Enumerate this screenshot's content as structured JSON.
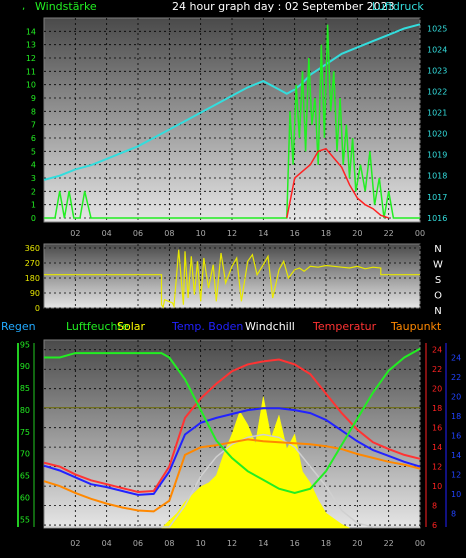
{
  "header": {
    "title": "24 hour graph day : 02 September 2023",
    "left_label": "Windstärke",
    "right_label": "Luftdruck",
    "left_marker": ","
  },
  "legend": {
    "regen": "Regen",
    "luftfeuchte": "Luftfeuchte",
    "solar": "Solar",
    "temp_boden": "Temp. Boden",
    "windchill": "Windchill",
    "temperatur": "Temperatur",
    "taupunkt": "Taupunkt"
  },
  "colors": {
    "wind": "#22ee22",
    "gust": "#ff2222",
    "pressure": "#33dddd",
    "direction": "#e8e800",
    "regen": "#22cc22",
    "luftfeuchte": "#22ee22",
    "solar": "#ffff00",
    "temp_boden": "#2222ff",
    "windchill": "#ffffff",
    "temperatur": "#ff3333",
    "taupunkt": "#ff8800",
    "background_top": "#4a4a4a",
    "background_bottom": "#e6e6e6"
  },
  "chart_data": [
    {
      "type": "line",
      "name": "wind-pressure",
      "x_ticks": [
        "02",
        "04",
        "06",
        "08",
        "10",
        "12",
        "14",
        "16",
        "18",
        "20",
        "22",
        "00"
      ],
      "y_left_ticks": [
        "0",
        "1",
        "2",
        "3",
        "4",
        "5",
        "6",
        "7",
        "8",
        "9",
        "10",
        "11",
        "12",
        "13",
        "14"
      ],
      "y_right_ticks": [
        "1016",
        "1017",
        "1018",
        "1019",
        "1020",
        "1021",
        "1022",
        "1023",
        "1024",
        "1025"
      ],
      "xlim": [
        0,
        24
      ],
      "ylim_left": [
        0,
        15
      ],
      "ylim_right": [
        1015.8,
        1025.5
      ],
      "pressure": {
        "x": [
          0,
          1,
          2,
          3,
          4,
          5,
          6,
          7,
          8,
          9,
          10,
          11,
          12,
          13,
          14,
          15,
          15.5,
          16,
          16.5,
          17,
          18,
          19,
          20,
          21,
          22,
          23,
          24
        ],
        "y": [
          1017.8,
          1018.0,
          1018.3,
          1018.5,
          1018.8,
          1019.1,
          1019.4,
          1019.8,
          1020.2,
          1020.6,
          1021.0,
          1021.4,
          1021.8,
          1022.2,
          1022.5,
          1022.1,
          1021.9,
          1022.1,
          1022.4,
          1022.8,
          1023.3,
          1023.8,
          1024.1,
          1024.4,
          1024.7,
          1025.0,
          1025.2
        ]
      },
      "wind": {
        "x": [
          0,
          0.7,
          1.0,
          1.3,
          1.6,
          1.9,
          2.3,
          2.6,
          3.0,
          3.4,
          15.5,
          15.7,
          15.9,
          16.1,
          16.3,
          16.5,
          16.7,
          16.9,
          17.1,
          17.3,
          17.5,
          17.7,
          17.9,
          18.1,
          18.3,
          18.5,
          18.7,
          18.9,
          19.1,
          19.3,
          19.5,
          19.7,
          19.9,
          20.2,
          20.5,
          20.8,
          21.1,
          21.4,
          21.7,
          22.0,
          22.3,
          22.6,
          23,
          24
        ],
        "y": [
          0,
          0,
          2,
          0,
          2,
          0,
          0,
          2,
          0,
          0,
          0,
          8,
          4,
          10,
          6,
          11,
          5,
          12,
          7,
          9,
          4,
          13,
          6,
          14.5,
          8,
          11,
          5,
          9,
          4,
          7,
          3,
          6,
          2,
          4,
          2,
          5,
          1,
          3,
          0,
          2,
          0,
          0,
          0,
          0
        ]
      },
      "gust": {
        "x": [
          15.5,
          16,
          16.5,
          17,
          17.5,
          18,
          18.5,
          19,
          19.5,
          20,
          20.5,
          21,
          21.5,
          22
        ],
        "y": [
          0,
          3,
          3.5,
          4,
          5,
          5.2,
          4.5,
          3.8,
          2.5,
          1.5,
          1,
          0.7,
          0.2,
          0
        ]
      }
    },
    {
      "type": "line",
      "name": "wind-direction",
      "x_ticks": [
        "02",
        "04",
        "06",
        "08",
        "10",
        "12",
        "14",
        "16",
        "18",
        "20",
        "22",
        "00"
      ],
      "y_left_ticks": [
        "0",
        "90",
        "180",
        "270",
        "360"
      ],
      "y_right_labels": [
        "N",
        "W",
        "S",
        "O",
        "N"
      ],
      "xlim": [
        0,
        24
      ],
      "ylim": [
        0,
        360
      ],
      "direction": {
        "x": [
          0,
          7.5,
          7.5,
          7.6,
          7.7,
          8.2,
          8.3,
          8.6,
          8.9,
          9.0,
          9.2,
          9.4,
          9.6,
          9.8,
          10.0,
          10.2,
          10.5,
          10.8,
          11.0,
          11.3,
          11.6,
          12.0,
          12.3,
          12.6,
          13.0,
          13.3,
          13.6,
          14.0,
          14.3,
          14.6,
          15.0,
          15.3,
          15.6,
          16.0,
          16.3,
          16.6,
          17.0,
          17.5,
          18.0,
          18.5,
          19.0,
          19.5,
          20.0,
          20.5,
          21.0,
          21.5,
          21.5,
          24
        ],
        "y": [
          200,
          200,
          20,
          5,
          50,
          30,
          10,
          350,
          20,
          340,
          60,
          310,
          80,
          280,
          40,
          300,
          120,
          260,
          40,
          330,
          150,
          250,
          300,
          40,
          280,
          320,
          200,
          260,
          310,
          60,
          230,
          280,
          180,
          230,
          240,
          220,
          250,
          245,
          255,
          250,
          245,
          240,
          250,
          235,
          245,
          240,
          200,
          200
        ]
      }
    },
    {
      "type": "line",
      "name": "temperature-humidity-solar",
      "x_ticks": [
        "02",
        "04",
        "06",
        "08",
        "10",
        "12",
        "14",
        "16",
        "18",
        "20",
        "22",
        "00"
      ],
      "humidity_ticks": [
        "55",
        "60",
        "65",
        "70",
        "75",
        "80",
        "85",
        "90",
        "95"
      ],
      "temp_ticks_red": [
        "6",
        "8",
        "10",
        "12",
        "14",
        "16",
        "18",
        "20",
        "22",
        "24"
      ],
      "temp_ticks_blue": [
        "4",
        "6",
        "8",
        "10",
        "12",
        "14",
        "16",
        "18",
        "20",
        "22",
        "24"
      ],
      "xlim": [
        0,
        24
      ],
      "humidity_ylim": [
        53,
        96
      ],
      "temp_ylim": [
        5.7,
        25
      ],
      "luftfeuchte": {
        "x": [
          0,
          1,
          2,
          3,
          4,
          5,
          6,
          7,
          7.5,
          8,
          9,
          10,
          11,
          12,
          13,
          14,
          15,
          16,
          17,
          18,
          19,
          20,
          21,
          22,
          23,
          24
        ],
        "y": [
          92,
          92,
          93,
          93,
          93,
          93,
          93,
          93,
          93,
          92,
          87,
          80,
          73,
          69,
          66,
          64,
          62,
          61,
          62,
          66,
          72,
          78,
          84,
          89,
          92,
          94
        ]
      },
      "temperatur": {
        "x": [
          0,
          1,
          2,
          3,
          4,
          5,
          6,
          7,
          8,
          9,
          10,
          11,
          12,
          13,
          14,
          15,
          16,
          17,
          18,
          19,
          20,
          21,
          22,
          23,
          24
        ],
        "y": [
          12.4,
          12.0,
          11.2,
          10.6,
          10.2,
          9.8,
          9.4,
          9.5,
          12.0,
          17.0,
          19.0,
          20.5,
          21.8,
          22.5,
          22.8,
          23.0,
          22.5,
          21.5,
          19.5,
          17.5,
          15.8,
          14.5,
          13.8,
          13.2,
          12.8
        ]
      },
      "temp_boden": {
        "x": [
          0,
          1,
          2,
          3,
          4,
          5,
          6,
          7,
          8,
          9,
          10,
          11,
          12,
          13,
          14,
          15,
          16,
          17,
          18,
          19,
          20,
          21,
          22,
          23,
          24
        ],
        "y": [
          12.1,
          11.6,
          10.9,
          10.2,
          9.9,
          9.5,
          9.1,
          9.2,
          11.5,
          15.3,
          16.5,
          17.0,
          17.4,
          17.8,
          18.0,
          18.0,
          17.8,
          17.5,
          16.8,
          15.7,
          14.6,
          13.7,
          13.1,
          12.5,
          12.0
        ]
      },
      "taupunkt": {
        "x": [
          0,
          1,
          2,
          3,
          4,
          5,
          6,
          7,
          8,
          9,
          10,
          11,
          12,
          13,
          14,
          15,
          16,
          17,
          18,
          19,
          20,
          21,
          22,
          23,
          24
        ],
        "y": [
          10.5,
          10.0,
          9.3,
          8.7,
          8.2,
          7.8,
          7.5,
          7.4,
          8.5,
          13.2,
          14.0,
          14.2,
          14.5,
          14.8,
          14.6,
          14.5,
          14.4,
          14.3,
          14.1,
          13.8,
          13.3,
          12.9,
          12.5,
          12.2,
          11.8
        ]
      },
      "windchill": {
        "x": [
          0,
          2,
          4,
          6,
          8,
          9,
          10,
          11,
          12,
          13,
          14,
          15,
          16,
          17,
          18,
          19,
          20,
          21,
          22,
          24
        ],
        "y": [
          5.8,
          5.8,
          5.8,
          5.8,
          5.8,
          8.0,
          11.0,
          13.0,
          14.3,
          15.0,
          15.3,
          15.0,
          14.0,
          12.0,
          10.0,
          7.5,
          6.2,
          5.8,
          5.8,
          5.8
        ]
      },
      "solar": {
        "x": [
          7.5,
          8,
          8.5,
          9,
          9.5,
          10,
          10.5,
          11,
          11.5,
          12,
          12.5,
          13,
          13.5,
          14,
          14.5,
          15,
          15.5,
          16,
          16.5,
          17,
          17.5,
          18,
          18.5,
          19,
          19.5
        ],
        "y": [
          0,
          4,
          8,
          14,
          18,
          22,
          24,
          28,
          40,
          50,
          62,
          55,
          45,
          70,
          48,
          60,
          42,
          50,
          30,
          24,
          15,
          8,
          5,
          2,
          0
        ]
      },
      "regen_level": 80.5
    }
  ]
}
